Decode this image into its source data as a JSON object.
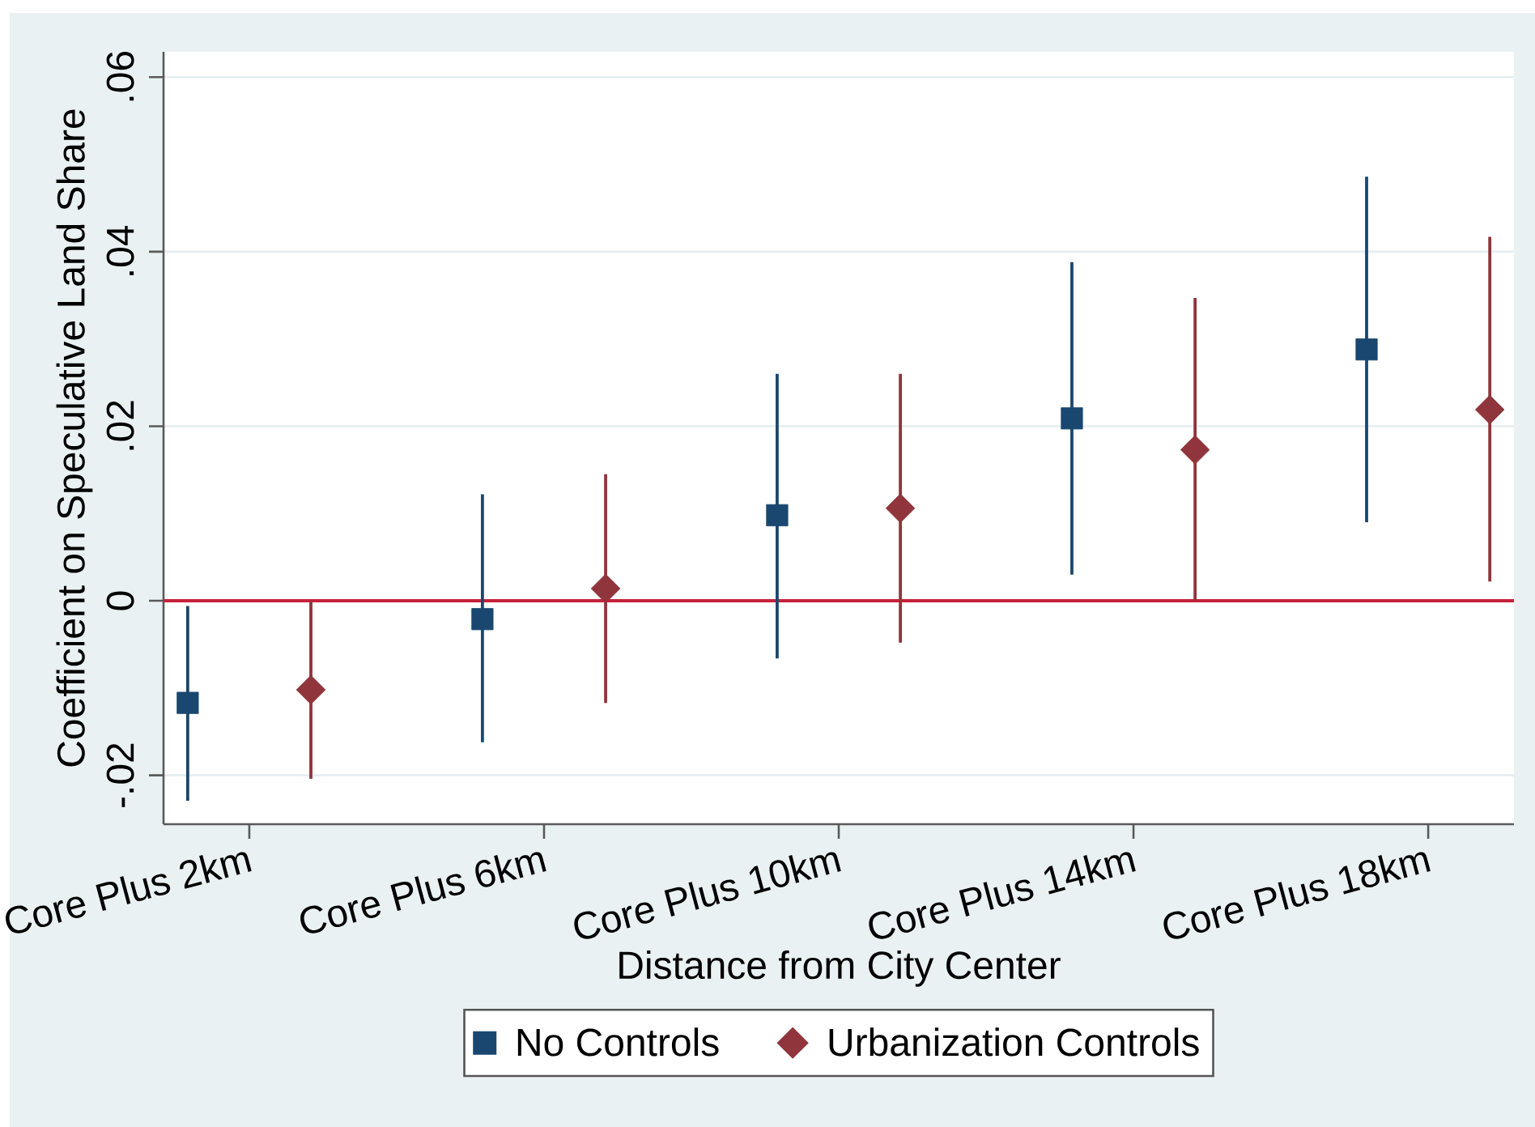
{
  "chart_data": {
    "type": "scatter",
    "xlabel": "Distance from City Center",
    "ylabel": "Coefficient on Speculative Land Share",
    "categories": [
      "Core Plus 2km",
      "Core Plus 6km",
      "Core Plus 10km",
      "Core Plus 14km",
      "Core Plus 18km"
    ],
    "ylim": [
      -0.0256,
      0.0629
    ],
    "yticks": [
      {
        "value": -0.02,
        "label": "-.02"
      },
      0,
      {
        "value": 0.02,
        "label": ".02"
      },
      {
        "value": 0.04,
        "label": ".04"
      },
      {
        "value": 0.06,
        "label": ".06"
      }
    ],
    "grid": "y",
    "legend": "bottom",
    "ref_lines": [
      {
        "axis": "y",
        "value": 0,
        "color": "#c8213b"
      }
    ],
    "series": [
      {
        "name": "No Controls",
        "color": "#1a476f",
        "marker": "square",
        "values": [
          -0.0117,
          -0.0021,
          0.0098,
          0.0209,
          0.0288
        ],
        "errors": [
          [
            -0.0229,
            -0.0006
          ],
          [
            -0.0162,
            0.0122
          ],
          [
            -0.0066,
            0.026
          ],
          [
            0.003,
            0.0388
          ],
          [
            0.009,
            0.0486
          ]
        ]
      },
      {
        "name": "Urbanization Controls",
        "color": "#90353b",
        "marker": "diamond",
        "values": [
          -0.0102,
          0.0014,
          0.0106,
          0.0173,
          0.0219
        ],
        "errors": [
          [
            -0.0204,
            0.0
          ],
          [
            -0.0117,
            0.0145
          ],
          [
            -0.0048,
            0.026
          ],
          [
            0.0,
            0.0347
          ],
          [
            0.0022,
            0.0417
          ]
        ]
      }
    ]
  }
}
